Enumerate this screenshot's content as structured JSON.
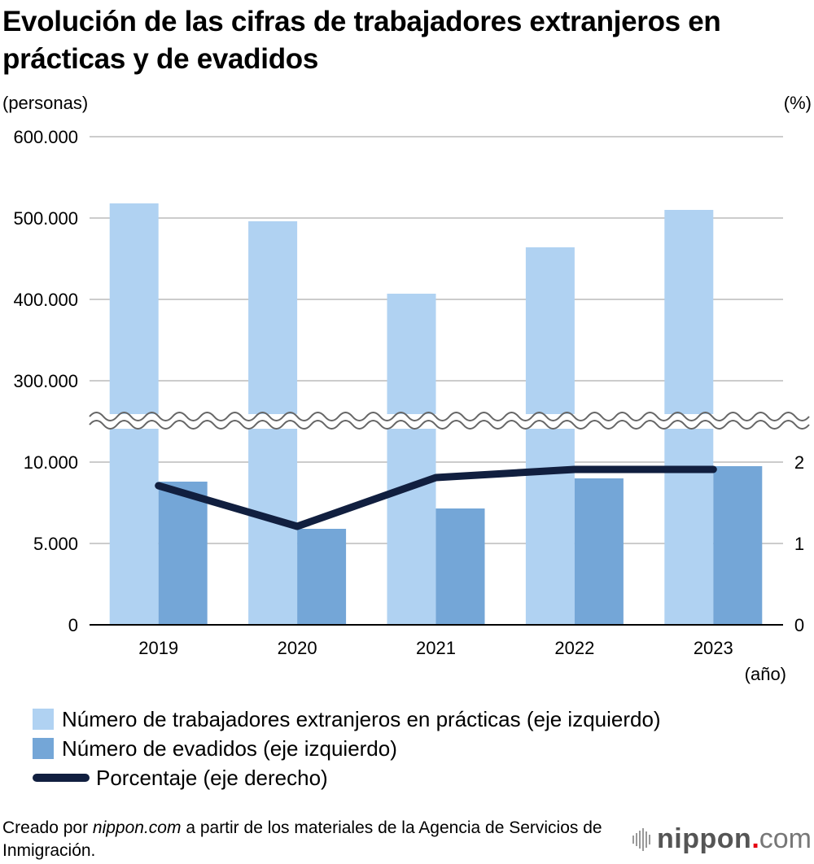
{
  "title": "Evolución de las cifras de trabajadores extranjeros en prácticas y de evadidos",
  "chart_data": {
    "type": "bar+line",
    "title": "Evolución de las cifras de trabajadores extranjeros en prácticas y de evadidos",
    "categories": [
      "2019",
      "2020",
      "2021",
      "2022",
      "2023"
    ],
    "xlabel": "(año)",
    "ylabel_left": "(personas)",
    "ylabel_right": "(%)",
    "axis_break": true,
    "left_axis_upper": {
      "range": [
        250000,
        600000
      ],
      "ticks": [
        "300.000",
        "400.000",
        "500.000",
        "600.000"
      ],
      "tick_values": [
        300000,
        400000,
        500000,
        600000
      ]
    },
    "left_axis_lower": {
      "range": [
        0,
        12500
      ],
      "ticks": [
        "0",
        "5.000",
        "10.000"
      ],
      "tick_values": [
        0,
        5000,
        10000
      ]
    },
    "right_axis": {
      "range": [
        0,
        2.5
      ],
      "ticks": [
        "0",
        "1",
        "2"
      ],
      "tick_values": [
        0,
        1,
        2
      ]
    },
    "grid": true,
    "legend_position": "bottom-left",
    "series": [
      {
        "name": "Número de trabajadores extranjeros en prácticas (eje izquierdo)",
        "type": "bar",
        "axis": "left-upper",
        "color": "#b0d2f2",
        "values": [
          518000,
          496000,
          407000,
          464000,
          510000
        ]
      },
      {
        "name": "Número de evadidos (eje izquierdo)",
        "type": "bar",
        "axis": "left-lower",
        "color": "#74a6d7",
        "values": [
          8800,
          5900,
          7150,
          9000,
          9750
        ]
      },
      {
        "name": "Porcentaje (eje derecho)",
        "type": "line",
        "axis": "right",
        "color": "#111f3f",
        "values": [
          1.71,
          1.21,
          1.81,
          1.91,
          1.91
        ]
      }
    ]
  },
  "source": {
    "prefix": "Creado por ",
    "site": "nippon.com",
    "suffix": " a partir de los materiales de la Agencia de Servicios de Inmigración."
  },
  "logo": {
    "name": "nippon",
    "dot": ".",
    "tld": "com"
  },
  "colors": {
    "grid": "#cccccc",
    "axis": "#000000",
    "break_line": "#666666"
  }
}
